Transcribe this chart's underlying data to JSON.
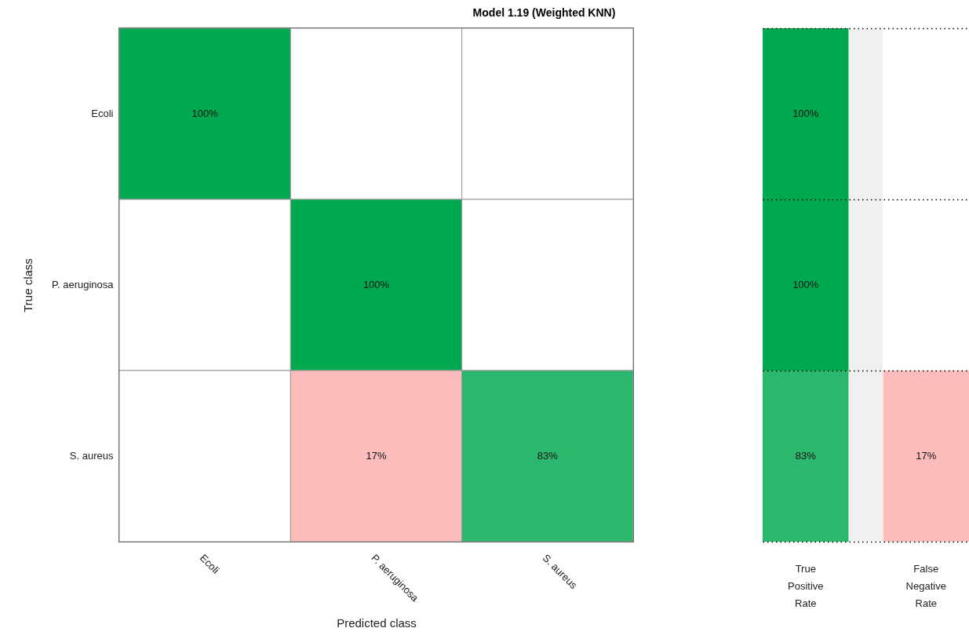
{
  "chart_data": [
    {
      "type": "heatmap",
      "title": "Model 1.19 (Weighted KNN)",
      "xlabel": "Predicted class",
      "ylabel": "True class",
      "categories": [
        "Ecoli",
        "P. aeruginosa",
        "S. aureus"
      ],
      "y_categories": [
        "Ecoli",
        "P. aeruginosa",
        "S. aureus"
      ],
      "cells": [
        [
          100,
          null,
          null
        ],
        [
          null,
          100,
          null
        ],
        [
          null,
          17,
          83
        ]
      ],
      "cell_labels": [
        [
          "100%",
          null,
          null
        ],
        [
          null,
          "100%",
          null
        ],
        [
          null,
          "17%",
          "83%"
        ]
      ]
    },
    {
      "type": "heatmap",
      "categories": [
        "True Positive Rate",
        "False Negative Rate"
      ],
      "y_categories": [
        null,
        null,
        null
      ],
      "cells": [
        [
          100,
          null
        ],
        [
          100,
          null
        ],
        [
          83,
          17
        ]
      ],
      "cell_labels": [
        [
          "100%",
          null
        ],
        [
          "100%",
          null
        ],
        [
          "83%",
          "17%"
        ]
      ],
      "tick_labels": "x"
    }
  ]
}
